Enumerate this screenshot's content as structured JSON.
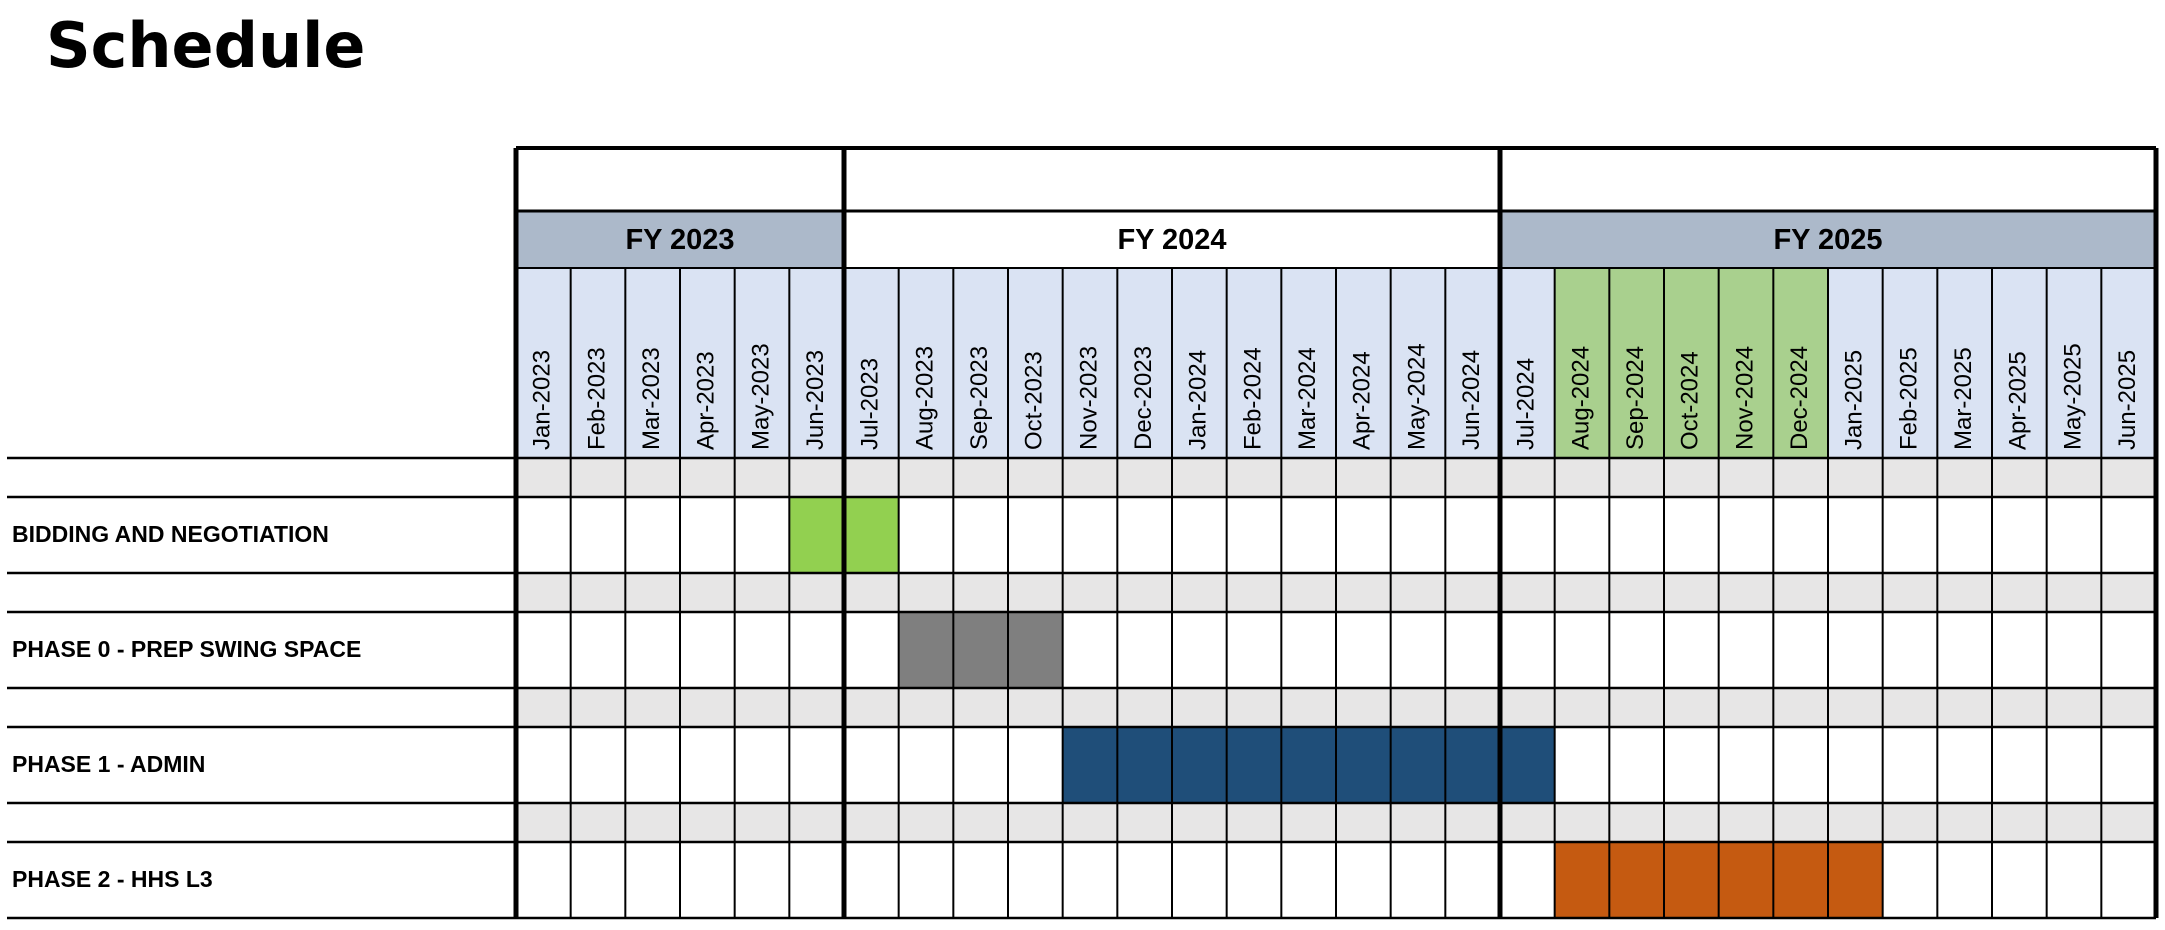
{
  "title": "Schedule",
  "fiscal_years": [
    {
      "label": "FY 2023",
      "color": "#acb9ca",
      "months": [
        "Jan-2023",
        "Feb-2023",
        "Mar-2023",
        "Apr-2023",
        "May-2023",
        "Jun-2023"
      ]
    },
    {
      "label": "FY 2024",
      "color": "#ffffff",
      "months": [
        "Jul-2023",
        "Aug-2023",
        "Sep-2023",
        "Oct-2023",
        "Nov-2023",
        "Dec-2023",
        "Jan-2024",
        "Feb-2024",
        "Mar-2024",
        "Apr-2024",
        "May-2024",
        "Jun-2024"
      ]
    },
    {
      "label": "FY 2025",
      "color": "#acb9ca",
      "months": [
        "Jul-2024",
        "Aug-2024",
        "Sep-2024",
        "Oct-2024",
        "Nov-2024",
        "Dec-2024",
        "Jan-2025",
        "Feb-2025",
        "Mar-2025",
        "Apr-2025",
        "May-2025",
        "Jun-2025"
      ]
    }
  ],
  "month_header_color": "#dae3f3",
  "month_highlight": {
    "color": "#a9d08e",
    "start": "Aug-2024",
    "end": "Dec-2024"
  },
  "spacer_color": "#e7e6e6",
  "tasks": [
    {
      "name": "BIDDING AND NEGOTIATION",
      "start": "Jun-2023",
      "end": "Jul-2023",
      "color": "#92d050"
    },
    {
      "name": "PHASE 0 - PREP SWING SPACE",
      "start": "Aug-2023",
      "end": "Oct-2023",
      "color": "#7f7f7f"
    },
    {
      "name": "PHASE 1 - ADMIN",
      "start": "Nov-2023",
      "end": "Jul-2024",
      "color": "#1f4e79"
    },
    {
      "name": "PHASE 2 - HHS L3",
      "start": "Aug-2024",
      "end": "Jan-2025",
      "color": "#c55a11"
    }
  ]
}
